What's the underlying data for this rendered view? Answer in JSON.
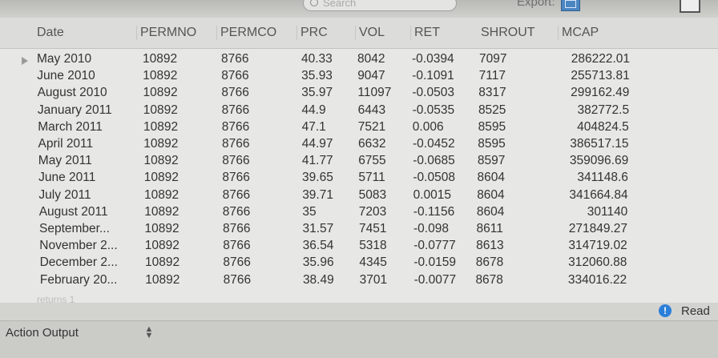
{
  "toolbar": {
    "search_placeholder": "Search",
    "export_label": "Export:"
  },
  "table": {
    "columns": [
      "Date",
      "PERMNO",
      "PERMCO",
      "PRC",
      "VOL",
      "RET",
      "SHROUT",
      "MCAP"
    ],
    "rows": [
      [
        "May 2010",
        "10892",
        "8766",
        "40.33",
        "8042",
        "-0.0394",
        "7097",
        "286222.01"
      ],
      [
        "June 2010",
        "10892",
        "8766",
        "35.93",
        "9047",
        "-0.1091",
        "7117",
        "255713.81"
      ],
      [
        "August 2010",
        "10892",
        "8766",
        "35.97",
        "11097",
        "-0.0503",
        "8317",
        "299162.49"
      ],
      [
        "January 2011",
        "10892",
        "8766",
        "44.9",
        "6443",
        "-0.0535",
        "8525",
        "382772.5"
      ],
      [
        "March 2011",
        "10892",
        "8766",
        "47.1",
        "7521",
        "0.006",
        "8595",
        "404824.5"
      ],
      [
        "April 2011",
        "10892",
        "8766",
        "44.97",
        "6632",
        "-0.0452",
        "8595",
        "386517.15"
      ],
      [
        "May 2011",
        "10892",
        "8766",
        "41.77",
        "6755",
        "-0.0685",
        "8597",
        "359096.69"
      ],
      [
        "June 2011",
        "10892",
        "8766",
        "39.65",
        "5711",
        "-0.0508",
        "8604",
        "341148.6"
      ],
      [
        "July 2011",
        "10892",
        "8766",
        "39.71",
        "5083",
        "0.0015",
        "8604",
        "341664.84"
      ],
      [
        "August 2011",
        "10892",
        "8766",
        "35",
        "7203",
        "-0.1156",
        "8604",
        "301140"
      ],
      [
        "September...",
        "10892",
        "8766",
        "31.57",
        "7451",
        "-0.098",
        "8611",
        "271849.27"
      ],
      [
        "November 2...",
        "10892",
        "8766",
        "36.54",
        "5318",
        "-0.0777",
        "8613",
        "314719.02"
      ],
      [
        "December 2...",
        "10892",
        "8766",
        "35.96",
        "4345",
        "-0.0159",
        "8678",
        "312060.88"
      ],
      [
        "February 20...",
        "10892",
        "8766",
        "38.49",
        "3701",
        "-0.0077",
        "8678",
        "334016.22"
      ]
    ],
    "footer_text": "returns 1"
  },
  "status": {
    "text": "Read"
  },
  "bottom": {
    "action_label": "Action Output"
  },
  "colors": {
    "info_icon": "#2c7fd8",
    "export_icon": "#4b86c2"
  }
}
